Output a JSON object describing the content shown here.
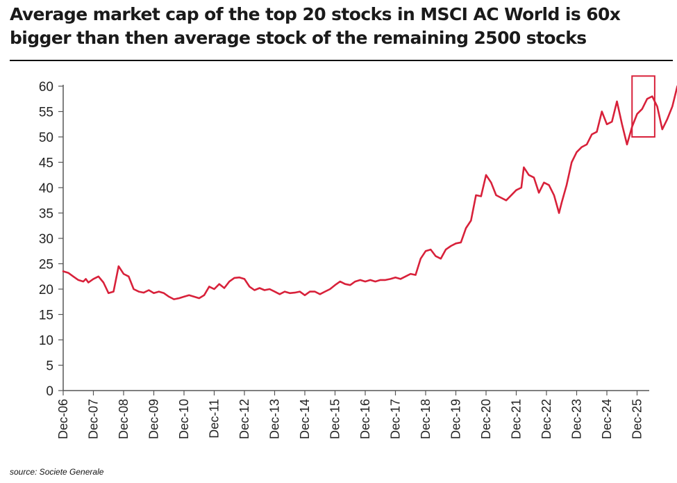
{
  "title": "Average market cap of the top 20 stocks in MSCI AC World is 60x bigger than then average stock of the remaining 2500 stocks",
  "source": "source: Societe Generale",
  "colors": {
    "line": "#d8213a",
    "highlight_box": "#d8213a",
    "axis": "#555555"
  },
  "chart_data": {
    "type": "line",
    "title": "Average market cap of the top 20 stocks in MSCI AC World is 60x bigger than then average stock of the remaining 2500 stocks",
    "xlabel": "",
    "ylabel": "",
    "ylim": [
      0,
      60
    ],
    "yticks": [
      0,
      5,
      10,
      15,
      20,
      25,
      30,
      35,
      40,
      45,
      50,
      55,
      60
    ],
    "xticks": [
      "Dec-06",
      "Dec-07",
      "Dec-08",
      "Dec-09",
      "Dec-10",
      "Dec-11",
      "Dec-12",
      "Dec-13",
      "Dec-14",
      "Dec-15",
      "Dec-16",
      "Dec-17",
      "Dec-18",
      "Dec-19",
      "Dec-20",
      "Dec-21",
      "Dec-22",
      "Dec-23",
      "Dec-24",
      "Dec-25"
    ],
    "grid": false,
    "annotations": [
      {
        "type": "box",
        "x_range": [
          "2025-10",
          "2026-07"
        ],
        "y_range": [
          50,
          62
        ]
      }
    ],
    "series": [
      {
        "values": [
          [
            "2006-12",
            23.5
          ],
          [
            "2007-02",
            23.2
          ],
          [
            "2007-04",
            22.5
          ],
          [
            "2007-06",
            21.8
          ],
          [
            "2007-08",
            21.5
          ],
          [
            "2007-09",
            22.0
          ],
          [
            "2007-10",
            21.3
          ],
          [
            "2007-12",
            22.0
          ],
          [
            "2008-02",
            22.5
          ],
          [
            "2008-04",
            21.3
          ],
          [
            "2008-06",
            19.2
          ],
          [
            "2008-08",
            19.5
          ],
          [
            "2008-10",
            24.5
          ],
          [
            "2008-12",
            23.0
          ],
          [
            "2009-02",
            22.5
          ],
          [
            "2009-04",
            20.0
          ],
          [
            "2009-06",
            19.5
          ],
          [
            "2009-08",
            19.3
          ],
          [
            "2009-10",
            19.8
          ],
          [
            "2009-12",
            19.2
          ],
          [
            "2010-02",
            19.5
          ],
          [
            "2010-04",
            19.2
          ],
          [
            "2010-06",
            18.5
          ],
          [
            "2010-08",
            18.0
          ],
          [
            "2010-10",
            18.2
          ],
          [
            "2010-12",
            18.5
          ],
          [
            "2011-02",
            18.8
          ],
          [
            "2011-04",
            18.5
          ],
          [
            "2011-06",
            18.2
          ],
          [
            "2011-08",
            18.8
          ],
          [
            "2011-10",
            20.5
          ],
          [
            "2011-12",
            20.0
          ],
          [
            "2012-02",
            21.0
          ],
          [
            "2012-04",
            20.2
          ],
          [
            "2012-06",
            21.5
          ],
          [
            "2012-08",
            22.2
          ],
          [
            "2012-10",
            22.3
          ],
          [
            "2012-12",
            22.0
          ],
          [
            "2013-02",
            20.5
          ],
          [
            "2013-04",
            19.8
          ],
          [
            "2013-06",
            20.2
          ],
          [
            "2013-08",
            19.8
          ],
          [
            "2013-10",
            20.0
          ],
          [
            "2013-12",
            19.5
          ],
          [
            "2014-02",
            19.0
          ],
          [
            "2014-04",
            19.5
          ],
          [
            "2014-06",
            19.2
          ],
          [
            "2014-08",
            19.3
          ],
          [
            "2014-10",
            19.5
          ],
          [
            "2014-12",
            18.8
          ],
          [
            "2015-02",
            19.5
          ],
          [
            "2015-04",
            19.5
          ],
          [
            "2015-06",
            19.0
          ],
          [
            "2015-08",
            19.5
          ],
          [
            "2015-10",
            20.0
          ],
          [
            "2015-12",
            20.8
          ],
          [
            "2016-02",
            21.5
          ],
          [
            "2016-04",
            21.0
          ],
          [
            "2016-06",
            20.8
          ],
          [
            "2016-08",
            21.5
          ],
          [
            "2016-10",
            21.8
          ],
          [
            "2016-12",
            21.5
          ],
          [
            "2017-02",
            21.8
          ],
          [
            "2017-04",
            21.5
          ],
          [
            "2017-06",
            21.8
          ],
          [
            "2017-08",
            21.8
          ],
          [
            "2017-10",
            22.0
          ],
          [
            "2017-12",
            22.3
          ],
          [
            "2018-02",
            22.0
          ],
          [
            "2018-04",
            22.5
          ],
          [
            "2018-06",
            23.0
          ],
          [
            "2018-08",
            22.8
          ],
          [
            "2018-10",
            26.0
          ],
          [
            "2018-12",
            27.5
          ],
          [
            "2019-02",
            27.8
          ],
          [
            "2019-04",
            26.5
          ],
          [
            "2019-06",
            26.0
          ],
          [
            "2019-08",
            27.8
          ],
          [
            "2019-10",
            28.5
          ],
          [
            "2019-12",
            29.0
          ],
          [
            "2020-02",
            29.2
          ],
          [
            "2020-04",
            32.0
          ],
          [
            "2020-06",
            33.5
          ],
          [
            "2020-08",
            38.5
          ],
          [
            "2020-10",
            38.3
          ],
          [
            "2020-12",
            42.5
          ],
          [
            "2021-02",
            41.0
          ],
          [
            "2021-04",
            38.5
          ],
          [
            "2021-06",
            38.0
          ],
          [
            "2021-08",
            37.5
          ],
          [
            "2021-10",
            38.5
          ],
          [
            "2021-12",
            39.5
          ],
          [
            "2022-02",
            40.0
          ],
          [
            "2022-03",
            44.0
          ],
          [
            "2022-05",
            42.5
          ],
          [
            "2022-07",
            42.0
          ],
          [
            "2022-09",
            39.0
          ],
          [
            "2022-11",
            41.0
          ],
          [
            "2023-01",
            40.5
          ],
          [
            "2023-03",
            38.5
          ],
          [
            "2023-05",
            35.0
          ],
          [
            "2023-06",
            37.0
          ],
          [
            "2023-08",
            40.5
          ],
          [
            "2023-10",
            45.0
          ],
          [
            "2023-12",
            47.0
          ],
          [
            "2024-02",
            48.0
          ],
          [
            "2024-04",
            48.5
          ],
          [
            "2024-06",
            50.5
          ],
          [
            "2024-08",
            51.0
          ],
          [
            "2024-10",
            55.0
          ],
          [
            "2024-12",
            52.5
          ],
          [
            "2025-02",
            53.0
          ],
          [
            "2025-04",
            57.0
          ],
          [
            "2025-06",
            52.5
          ],
          [
            "2025-08",
            48.5
          ],
          [
            "2025-10",
            52.0
          ],
          [
            "2025-12",
            54.5
          ],
          [
            "2026-02",
            55.5
          ],
          [
            "2026-04",
            57.5
          ],
          [
            "2026-06",
            58.0
          ],
          [
            "2026-08",
            56.0
          ],
          [
            "2026-10",
            51.5
          ],
          [
            "2026-12",
            53.5
          ],
          [
            "2027-02",
            56.0
          ],
          [
            "2027-04",
            60.0
          ]
        ]
      }
    ]
  }
}
